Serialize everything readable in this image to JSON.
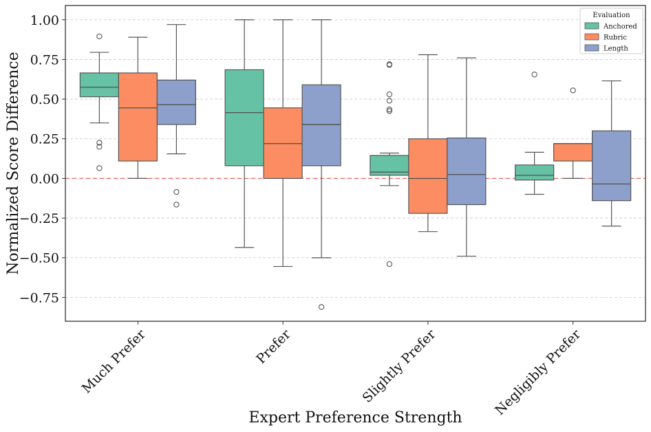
{
  "chart_data": {
    "type": "boxplot",
    "title": "",
    "xlabel": "Expert Preference Strength",
    "ylabel": "Normalized Score Difference",
    "ylim": [
      -0.9,
      1.09
    ],
    "yticks": [
      1.0,
      0.75,
      0.5,
      0.25,
      0.0,
      -0.25,
      -0.5,
      -0.75
    ],
    "ytick_labels": [
      "1.00",
      "0.75",
      "0.50",
      "0.25",
      "0.00",
      "−0.25",
      "−0.50",
      "−0.75"
    ],
    "grid": "horizontal dashed",
    "reference_line": {
      "y": 0.0,
      "style": "dashed",
      "color": "#e8534f"
    },
    "categories": [
      "Much Prefer",
      "Prefer",
      "Slightly Prefer",
      "Negligibly Prefer"
    ],
    "legend": {
      "title": "Evaluation",
      "position": "top-right"
    },
    "series": [
      {
        "name": "Anchored",
        "color": "#66c2a5",
        "boxes": [
          {
            "whislo": 0.35,
            "q1": 0.515,
            "med": 0.575,
            "q3": 0.665,
            "whishi": 0.795,
            "fliers": [
              0.895,
              0.225,
              0.2,
              0.065
            ]
          },
          {
            "whislo": -0.435,
            "q1": 0.08,
            "med": 0.415,
            "q3": 0.685,
            "whishi": 1.0,
            "fliers": []
          },
          {
            "whislo": -0.045,
            "q1": 0.02,
            "med": 0.04,
            "q3": 0.145,
            "whishi": 0.16,
            "fliers": [
              0.72,
              0.715,
              0.53,
              0.49,
              0.435,
              0.425,
              -0.54
            ]
          },
          {
            "whislo": -0.1,
            "q1": -0.01,
            "med": 0.02,
            "q3": 0.085,
            "whishi": 0.165,
            "fliers": [
              0.655
            ]
          }
        ]
      },
      {
        "name": "Rubric",
        "color": "#fc8d62",
        "boxes": [
          {
            "whislo": 0.0,
            "q1": 0.11,
            "med": 0.445,
            "q3": 0.665,
            "whishi": 0.89,
            "fliers": []
          },
          {
            "whislo": -0.555,
            "q1": 0.0,
            "med": 0.22,
            "q3": 0.445,
            "whishi": 1.0,
            "fliers": []
          },
          {
            "whislo": -0.335,
            "q1": -0.22,
            "med": 0.0,
            "q3": 0.25,
            "whishi": 0.78,
            "fliers": []
          },
          {
            "whislo": 0.0,
            "q1": 0.11,
            "med": 0.22,
            "q3": 0.22,
            "whishi": 0.22,
            "fliers": [
              0.555
            ]
          }
        ]
      },
      {
        "name": "Length",
        "color": "#8da0cb",
        "boxes": [
          {
            "whislo": 0.155,
            "q1": 0.34,
            "med": 0.465,
            "q3": 0.62,
            "whishi": 0.97,
            "fliers": [
              -0.085,
              -0.165
            ]
          },
          {
            "whislo": -0.5,
            "q1": 0.08,
            "med": 0.34,
            "q3": 0.59,
            "whishi": 1.0,
            "fliers": [
              -0.81
            ]
          },
          {
            "whislo": -0.49,
            "q1": -0.165,
            "med": 0.025,
            "q3": 0.255,
            "whishi": 0.76,
            "fliers": []
          },
          {
            "whislo": -0.3,
            "q1": -0.14,
            "med": -0.035,
            "q3": 0.3,
            "whishi": 0.615,
            "fliers": []
          }
        ]
      }
    ]
  }
}
